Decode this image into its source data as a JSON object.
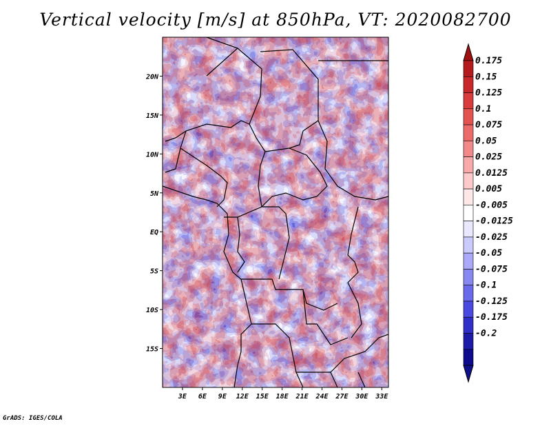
{
  "title": "Vertical velocity [m/s] at 850hPa, VT: 2020082700",
  "credit": "GrADS: IGES/COLA",
  "map": {
    "lon_range": [
      0,
      34
    ],
    "lat_range": [
      -20,
      25
    ],
    "x_ticks": [
      "3E",
      "6E",
      "9E",
      "12E",
      "15E",
      "18E",
      "21E",
      "24E",
      "27E",
      "30E",
      "33E"
    ],
    "y_ticks": [
      "20N",
      "15N",
      "10N",
      "5N",
      "EQ",
      "5S",
      "10S",
      "15S"
    ]
  },
  "colorbar": {
    "labels": [
      "0.175",
      "0.15",
      "0.125",
      "0.1",
      "0.075",
      "0.05",
      "0.025",
      "0.0125",
      "0.005",
      "-0.005",
      "-0.0125",
      "-0.025",
      "-0.05",
      "-0.075",
      "-0.1",
      "-0.125",
      "-0.175",
      "-0.2"
    ],
    "colors": [
      "#b41b1f",
      "#c8282c",
      "#d83c3c",
      "#e45252",
      "#ec6a6a",
      "#f28888",
      "#f8aaaa",
      "#fccaca",
      "#ffe8e8",
      "#ffffff",
      "#e8e8fe",
      "#cacafc",
      "#aaaaf8",
      "#8888f2",
      "#6a6aec",
      "#4a4ae0",
      "#3030c8",
      "#1c1ca8",
      "#0c0c8c"
    ],
    "tip_top": "#a01010",
    "tip_bottom": "#10108a"
  }
}
